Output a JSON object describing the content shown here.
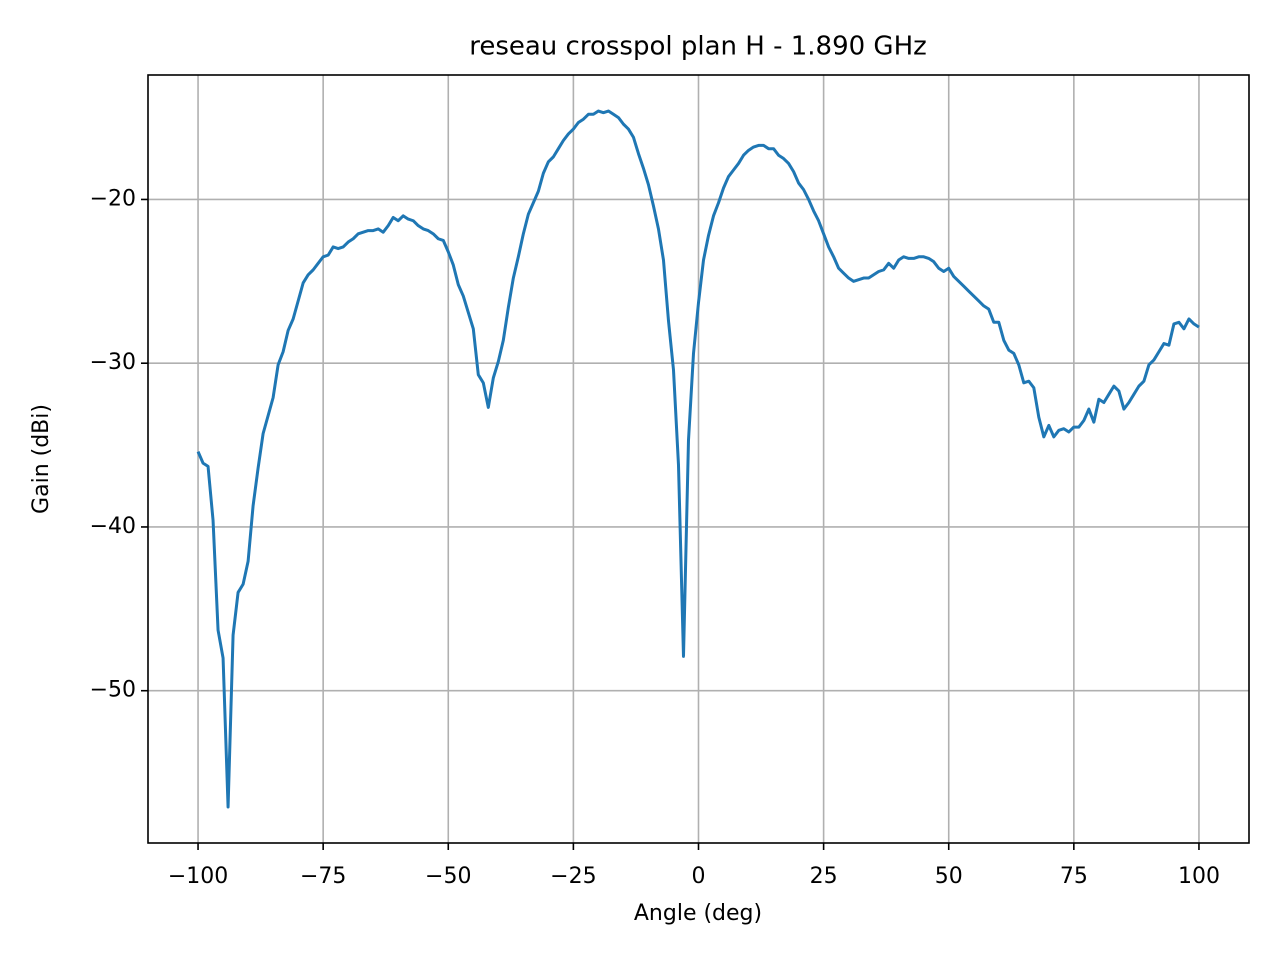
{
  "chart_data": {
    "type": "line",
    "title": "reseau crosspol plan H - 1.890 GHz",
    "x_label": "Angle (deg)",
    "y_label": "Gain (dBi)",
    "xlim": [
      -110,
      110
    ],
    "ylim": [
      -59.3,
      -12.4
    ],
    "xticks": [
      {
        "value": -100,
        "label": "−100"
      },
      {
        "value": -75,
        "label": "−75"
      },
      {
        "value": -50,
        "label": "−50"
      },
      {
        "value": -25,
        "label": "−25"
      },
      0,
      25,
      50,
      75,
      100
    ],
    "yticks": [
      {
        "value": -50,
        "label": "−50"
      },
      {
        "value": -40,
        "label": "−40"
      },
      {
        "value": -30,
        "label": "−30"
      },
      {
        "value": -20,
        "label": "−20"
      }
    ],
    "grid": true,
    "x": [
      -100,
      -99,
      -98,
      -97,
      -96,
      -95,
      -94,
      -93,
      -92,
      -91,
      -90,
      -89,
      -88,
      -87,
      -86,
      -85,
      -84,
      -83,
      -82,
      -81,
      -80,
      -79,
      -78,
      -77,
      -76,
      -75,
      -74,
      -73,
      -72,
      -71,
      -70,
      -69,
      -68,
      -67,
      -66,
      -65,
      -64,
      -63,
      -62,
      -61,
      -60,
      -59,
      -58,
      -57,
      -56,
      -55,
      -54,
      -53,
      -52,
      -51,
      -50,
      -49,
      -48,
      -47,
      -46,
      -45,
      -44,
      -43,
      -42,
      -41,
      -40,
      -39,
      -38,
      -37,
      -36,
      -35,
      -34,
      -33,
      -32,
      -31,
      -30,
      -29,
      -28,
      -27,
      -26,
      -25,
      -24,
      -23,
      -22,
      -21,
      -20,
      -19,
      -18,
      -17,
      -16,
      -15,
      -14,
      -13,
      -12,
      -11,
      -10,
      -9,
      -8,
      -7,
      -6,
      -5,
      -4,
      -3,
      -2,
      -1,
      0,
      1,
      2,
      3,
      4,
      5,
      6,
      7,
      8,
      9,
      10,
      11,
      12,
      13,
      14,
      15,
      16,
      17,
      18,
      19,
      20,
      21,
      22,
      23,
      24,
      25,
      26,
      27,
      28,
      29,
      30,
      31,
      32,
      33,
      34,
      35,
      36,
      37,
      38,
      39,
      40,
      41,
      42,
      43,
      44,
      45,
      46,
      47,
      48,
      49,
      50,
      51,
      52,
      53,
      54,
      55,
      56,
      57,
      58,
      59,
      60,
      61,
      62,
      63,
      64,
      65,
      66,
      67,
      68,
      69,
      70,
      71,
      72,
      73,
      74,
      75,
      76,
      77,
      78,
      79,
      80,
      81,
      82,
      83,
      84,
      85,
      86,
      87,
      88,
      89,
      90,
      91,
      92,
      93,
      94,
      95,
      96,
      97,
      98,
      99,
      100
    ],
    "series": [
      {
        "color": "#1f77b4",
        "values": [
          -35.4,
          -36.1,
          -36.3,
          -39.6,
          -46.3,
          -48.0,
          -57.1,
          -46.6,
          -44.0,
          -43.5,
          -42.1,
          -38.7,
          -36.4,
          -34.3,
          -33.2,
          -32.1,
          -30.1,
          -29.3,
          -28.0,
          -27.3,
          -26.2,
          -25.1,
          -24.6,
          -24.3,
          -23.9,
          -23.5,
          -23.4,
          -22.9,
          -23.0,
          -22.9,
          -22.6,
          -22.4,
          -22.1,
          -22.0,
          -21.9,
          -21.9,
          -21.8,
          -22.0,
          -21.6,
          -21.1,
          -21.3,
          -21.0,
          -21.2,
          -21.3,
          -21.6,
          -21.8,
          -21.9,
          -22.1,
          -22.4,
          -22.5,
          -23.2,
          -24.0,
          -25.2,
          -25.9,
          -26.9,
          -27.9,
          -30.7,
          -31.2,
          -32.7,
          -30.9,
          -29.9,
          -28.6,
          -26.6,
          -24.8,
          -23.5,
          -22.1,
          -20.9,
          -20.2,
          -19.5,
          -18.4,
          -17.7,
          -17.4,
          -16.9,
          -16.4,
          -16.0,
          -15.7,
          -15.3,
          -15.1,
          -14.8,
          -14.8,
          -14.6,
          -14.7,
          -14.6,
          -14.8,
          -15.0,
          -15.4,
          -15.7,
          -16.2,
          -17.2,
          -18.1,
          -19.1,
          -20.4,
          -21.8,
          -23.7,
          -27.4,
          -30.4,
          -36.2,
          -47.9,
          -34.7,
          -29.4,
          -26.3,
          -23.7,
          -22.2,
          -21.0,
          -20.2,
          -19.3,
          -18.6,
          -18.2,
          -17.8,
          -17.3,
          -17.0,
          -16.8,
          -16.7,
          -16.7,
          -16.9,
          -16.9,
          -17.3,
          -17.5,
          -17.8,
          -18.3,
          -19.0,
          -19.4,
          -20.0,
          -20.7,
          -21.3,
          -22.1,
          -22.9,
          -23.5,
          -24.2,
          -24.5,
          -24.8,
          -25.0,
          -24.9,
          -24.8,
          -24.8,
          -24.6,
          -24.4,
          -24.3,
          -23.9,
          -24.2,
          -23.7,
          -23.5,
          -23.6,
          -23.6,
          -23.5,
          -23.5,
          -23.6,
          -23.8,
          -24.2,
          -24.4,
          -24.2,
          -24.7,
          -25.0,
          -25.3,
          -25.6,
          -25.9,
          -26.2,
          -26.5,
          -26.7,
          -27.5,
          -27.5,
          -28.6,
          -29.2,
          -29.4,
          -30.1,
          -31.2,
          -31.1,
          -31.5,
          -33.3,
          -34.5,
          -33.8,
          -34.5,
          -34.1,
          -34.0,
          -34.2,
          -33.9,
          -33.9,
          -33.5,
          -32.8,
          -33.6,
          -32.2,
          -32.4,
          -31.9,
          -31.4,
          -31.7,
          -32.8,
          -32.4,
          -31.9,
          -31.4,
          -31.1,
          -30.1,
          -29.8,
          -29.3,
          -28.8,
          -28.9,
          -27.6,
          -27.5,
          -27.9,
          -27.3,
          -27.6,
          -27.8
        ]
      }
    ]
  }
}
